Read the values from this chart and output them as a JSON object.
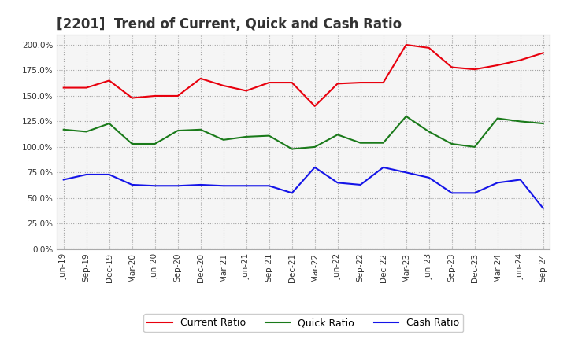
{
  "title": "[2201]  Trend of Current, Quick and Cash Ratio",
  "x_labels": [
    "Jun-19",
    "Sep-19",
    "Dec-19",
    "Mar-20",
    "Jun-20",
    "Sep-20",
    "Dec-20",
    "Mar-21",
    "Jun-21",
    "Sep-21",
    "Dec-21",
    "Mar-22",
    "Jun-22",
    "Sep-22",
    "Dec-22",
    "Mar-23",
    "Jun-23",
    "Sep-23",
    "Dec-23",
    "Mar-24",
    "Jun-24",
    "Sep-24"
  ],
  "current_ratio": [
    158,
    158,
    165,
    148,
    150,
    150,
    167,
    160,
    155,
    163,
    163,
    140,
    162,
    163,
    163,
    200,
    197,
    178,
    176,
    180,
    185,
    192
  ],
  "quick_ratio": [
    117,
    115,
    123,
    103,
    103,
    116,
    117,
    107,
    110,
    111,
    98,
    100,
    112,
    104,
    104,
    130,
    115,
    103,
    100,
    128,
    125,
    123
  ],
  "cash_ratio": [
    68,
    73,
    73,
    63,
    62,
    62,
    63,
    62,
    62,
    62,
    55,
    80,
    65,
    63,
    80,
    75,
    70,
    55,
    55,
    65,
    68,
    40
  ],
  "colors": {
    "current": "#e8000d",
    "quick": "#1a7a1a",
    "cash": "#1414e8"
  },
  "ylim": [
    0,
    210
  ],
  "yticks": [
    0,
    25,
    50,
    75,
    100,
    125,
    150,
    175,
    200
  ],
  "background_color": "#ffffff",
  "plot_bg_color": "#f5f5f5",
  "grid_color": "#999999",
  "title_fontsize": 12,
  "legend_labels": [
    "Current Ratio",
    "Quick Ratio",
    "Cash Ratio"
  ]
}
